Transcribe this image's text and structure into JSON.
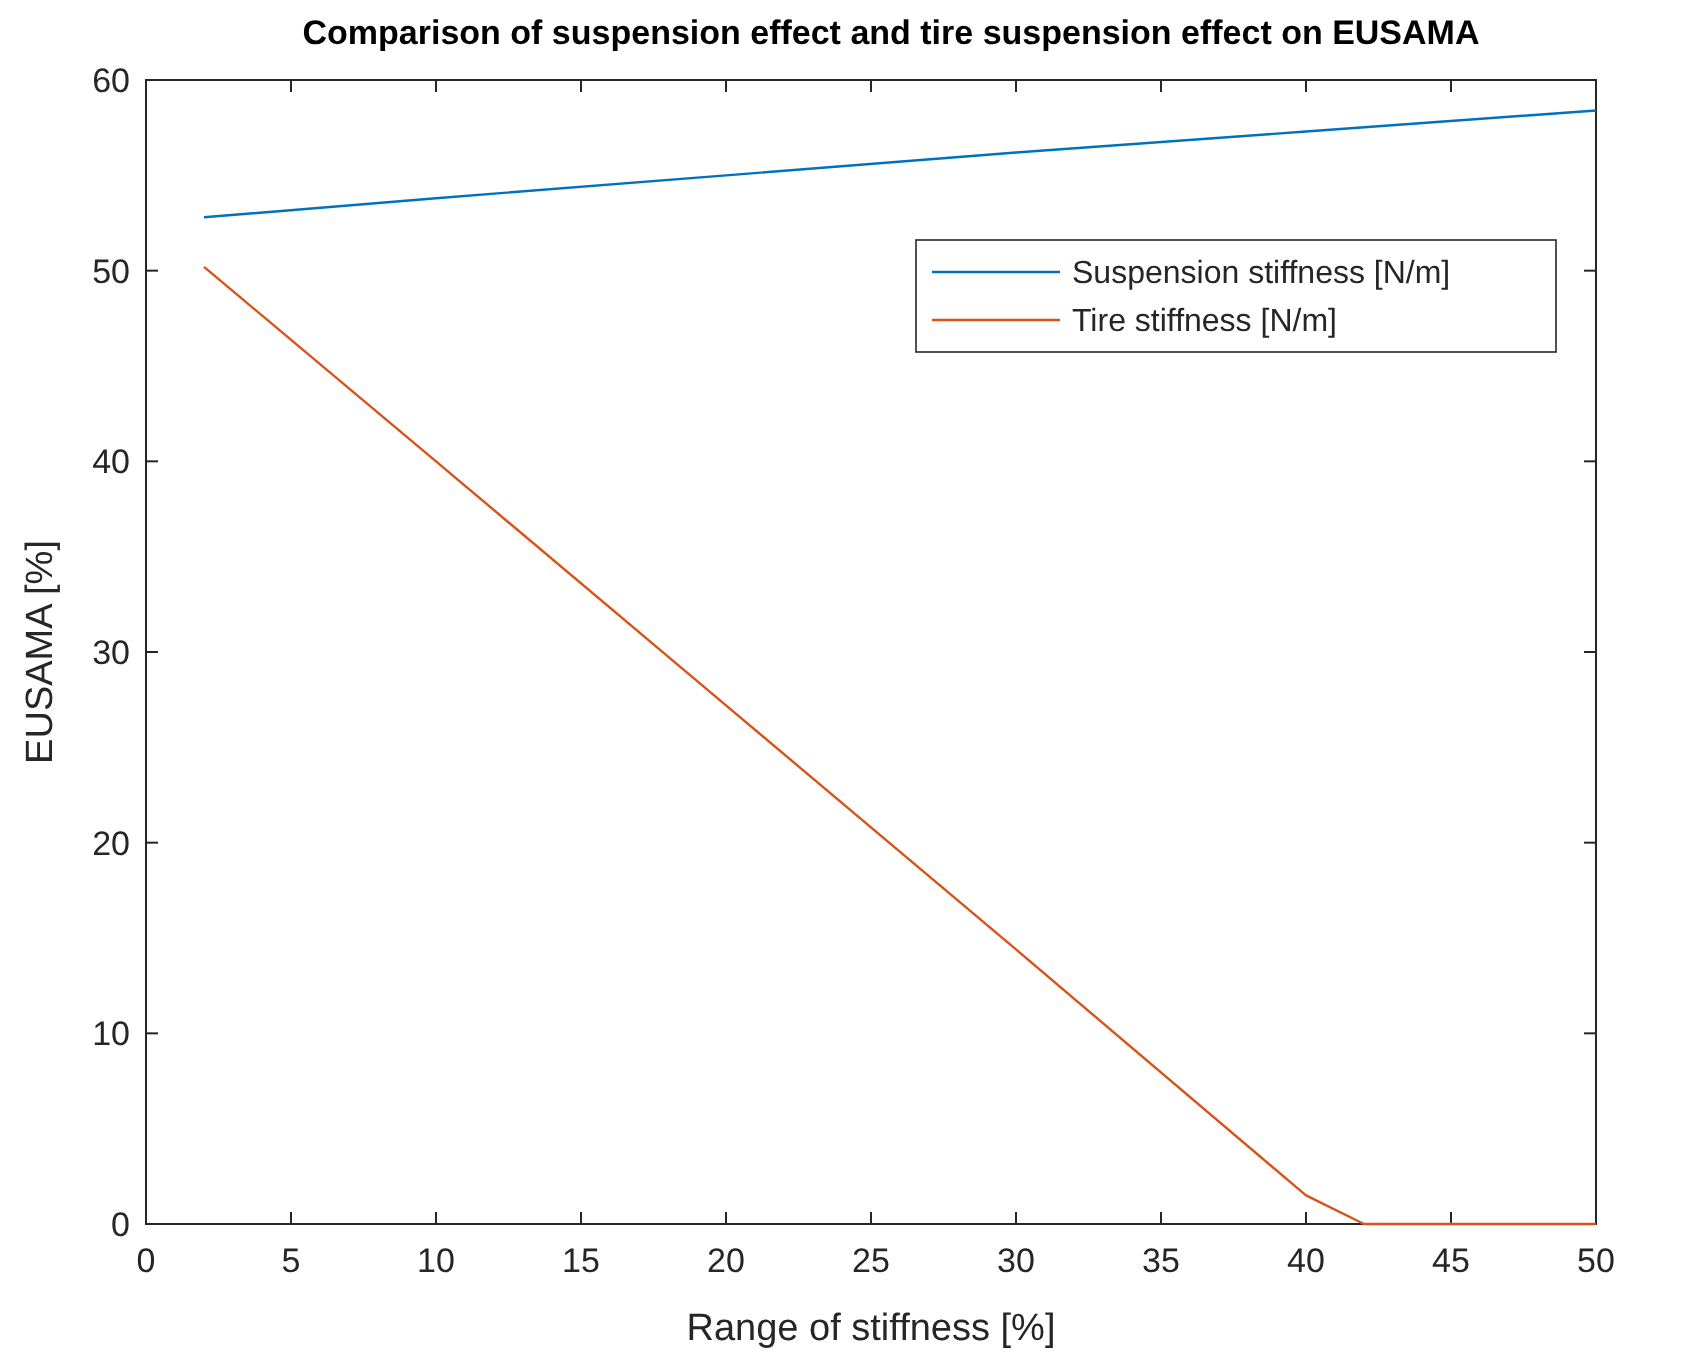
{
  "chart_data": {
    "type": "line",
    "title": "Comparison of suspension effect and tire suspension effect on EUSAMA",
    "xlabel": "Range of stiffness [%]",
    "ylabel": "EUSAMA [%]",
    "xlim": [
      0,
      50
    ],
    "xticks": [
      0,
      5,
      10,
      15,
      20,
      25,
      30,
      35,
      40,
      45,
      50
    ],
    "ylim": [
      0,
      60
    ],
    "yticks": [
      0,
      10,
      20,
      30,
      40,
      50,
      60
    ],
    "grid": false,
    "legend": "top right",
    "marker": "none",
    "line_style": "solid",
    "series": [
      {
        "name": "Suspension stiffness [N/m]",
        "color": "#0072bd",
        "x": [
          2,
          10,
          20,
          30,
          40,
          50
        ],
        "values": [
          52.8,
          53.8,
          55.0,
          56.2,
          57.3,
          58.4
        ]
      },
      {
        "name": "Tire stiffness [N/m]",
        "color": "#d95319",
        "x": [
          2,
          10,
          20,
          30,
          40,
          42,
          50
        ],
        "values": [
          50.2,
          40,
          27.2,
          14.4,
          1.5,
          0,
          0
        ]
      }
    ]
  }
}
